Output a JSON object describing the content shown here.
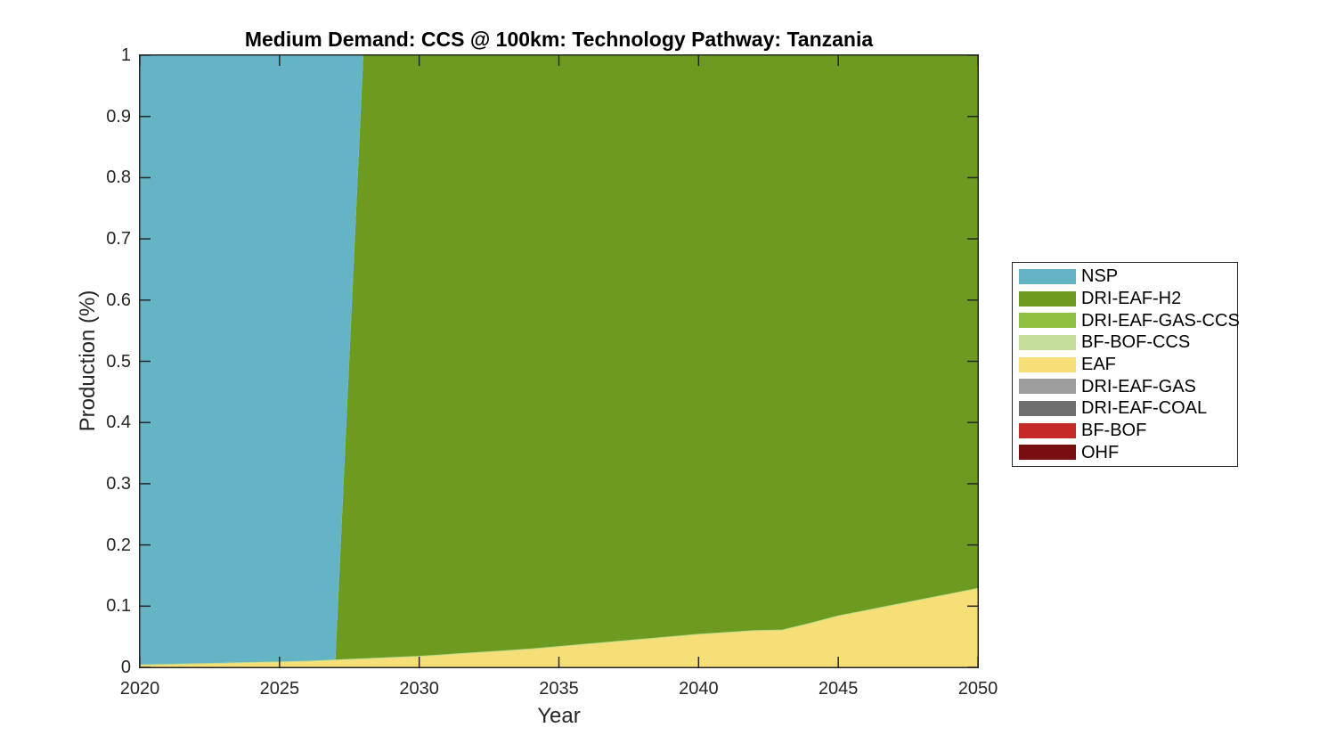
{
  "figure": {
    "title": "Medium Demand: CCS @ 100km: Technology Pathway: Tanzania",
    "xlabel": "Year",
    "ylabel": "Production (%)"
  },
  "axes": {
    "x_ticks": [
      2020,
      2025,
      2030,
      2035,
      2040,
      2045,
      2050
    ],
    "y_ticks": [
      "0",
      "0.1",
      "0.2",
      "0.3",
      "0.4",
      "0.5",
      "0.6",
      "0.7",
      "0.8",
      "0.9",
      "1"
    ],
    "axis_color": "#262626",
    "grid": false
  },
  "legend": {
    "position": "right-outside",
    "items": [
      {
        "label": "NSP",
        "color": "#65B4C5"
      },
      {
        "label": "DRI-EAF-H2",
        "color": "#6C9B1F"
      },
      {
        "label": "DRI-EAF-GAS-CCS",
        "color": "#8FC03F"
      },
      {
        "label": "BF-BOF-CCS",
        "color": "#C6DE9C"
      },
      {
        "label": "EAF",
        "color": "#F6DF77"
      },
      {
        "label": "DRI-EAF-GAS",
        "color": "#9E9E9E"
      },
      {
        "label": "DRI-EAF-COAL",
        "color": "#6E6E6E"
      },
      {
        "label": "BF-BOF",
        "color": "#C42A28"
      },
      {
        "label": "OHF",
        "color": "#770F0E"
      }
    ]
  },
  "chart_data": {
    "type": "area",
    "stacked": true,
    "title": "Medium Demand: CCS @ 100km: Technology Pathway: Tanzania",
    "xlabel": "Year",
    "ylabel": "Production (%)",
    "xlim": [
      2020,
      2050
    ],
    "ylim": [
      0,
      1
    ],
    "grid": false,
    "legend_position": "right-outside",
    "stack_note": "stacked bottom-to-top in reverse legend order; NSP is topmost",
    "x": [
      2020,
      2021,
      2022,
      2023,
      2024,
      2025,
      2026,
      2027,
      2028,
      2029,
      2030,
      2031,
      2032,
      2033,
      2034,
      2035,
      2036,
      2037,
      2038,
      2039,
      2040,
      2041,
      2042,
      2043,
      2044,
      2045,
      2046,
      2047,
      2048,
      2049,
      2050
    ],
    "series": [
      {
        "name": "NSP",
        "color": "#65B4C5",
        "values": [
          0.996,
          0.995,
          0.994,
          0.993,
          0.992,
          0.991,
          0.99,
          0.988,
          0,
          0,
          0,
          0,
          0,
          0,
          0,
          0,
          0,
          0,
          0,
          0,
          0,
          0,
          0,
          0,
          0,
          0,
          0,
          0,
          0,
          0,
          0
        ]
      },
      {
        "name": "DRI-EAF-H2",
        "color": "#6C9B1F",
        "values": [
          0,
          0,
          0,
          0,
          0,
          0,
          0,
          0,
          0.986,
          0.984,
          0.982,
          0.979,
          0.976,
          0.973,
          0.97,
          0.966,
          0.962,
          0.958,
          0.954,
          0.95,
          0.946,
          0.943,
          0.94,
          0.939,
          0.928,
          0.916,
          0.907,
          0.898,
          0.889,
          0.88,
          0.871
        ]
      },
      {
        "name": "DRI-EAF-GAS-CCS",
        "color": "#8FC03F",
        "values": [
          0,
          0,
          0,
          0,
          0,
          0,
          0,
          0,
          0,
          0,
          0,
          0,
          0,
          0,
          0,
          0,
          0,
          0,
          0,
          0,
          0,
          0,
          0,
          0,
          0,
          0,
          0,
          0,
          0,
          0,
          0
        ]
      },
      {
        "name": "BF-BOF-CCS",
        "color": "#C6DE9C",
        "values": [
          0,
          0,
          0,
          0,
          0,
          0,
          0,
          0,
          0,
          0,
          0,
          0,
          0,
          0,
          0,
          0,
          0,
          0,
          0,
          0,
          0,
          0,
          0,
          0,
          0,
          0,
          0,
          0,
          0,
          0,
          0
        ]
      },
      {
        "name": "EAF",
        "color": "#F6DF77",
        "values": [
          0.004,
          0.005,
          0.006,
          0.007,
          0.008,
          0.009,
          0.01,
          0.012,
          0.014,
          0.016,
          0.018,
          0.021,
          0.024,
          0.027,
          0.03,
          0.034,
          0.038,
          0.042,
          0.046,
          0.05,
          0.054,
          0.057,
          0.06,
          0.061,
          0.072,
          0.084,
          0.093,
          0.102,
          0.111,
          0.12,
          0.129
        ]
      },
      {
        "name": "DRI-EAF-GAS",
        "color": "#9E9E9E",
        "values": [
          0,
          0,
          0,
          0,
          0,
          0,
          0,
          0,
          0,
          0,
          0,
          0,
          0,
          0,
          0,
          0,
          0,
          0,
          0,
          0,
          0,
          0,
          0,
          0,
          0,
          0,
          0,
          0,
          0,
          0,
          0
        ]
      },
      {
        "name": "DRI-EAF-COAL",
        "color": "#6E6E6E",
        "values": [
          0,
          0,
          0,
          0,
          0,
          0,
          0,
          0,
          0,
          0,
          0,
          0,
          0,
          0,
          0,
          0,
          0,
          0,
          0,
          0,
          0,
          0,
          0,
          0,
          0,
          0,
          0,
          0,
          0,
          0,
          0
        ]
      },
      {
        "name": "BF-BOF",
        "color": "#C42A28",
        "values": [
          0,
          0,
          0,
          0,
          0,
          0,
          0,
          0,
          0,
          0,
          0,
          0,
          0,
          0,
          0,
          0,
          0,
          0,
          0,
          0,
          0,
          0,
          0,
          0,
          0,
          0,
          0,
          0,
          0,
          0,
          0
        ]
      },
      {
        "name": "OHF",
        "color": "#770F0E",
        "values": [
          0,
          0,
          0,
          0,
          0,
          0,
          0,
          0,
          0,
          0,
          0,
          0,
          0,
          0,
          0,
          0,
          0,
          0,
          0,
          0,
          0,
          0,
          0,
          0,
          0,
          0,
          0,
          0,
          0,
          0,
          0
        ]
      }
    ]
  }
}
